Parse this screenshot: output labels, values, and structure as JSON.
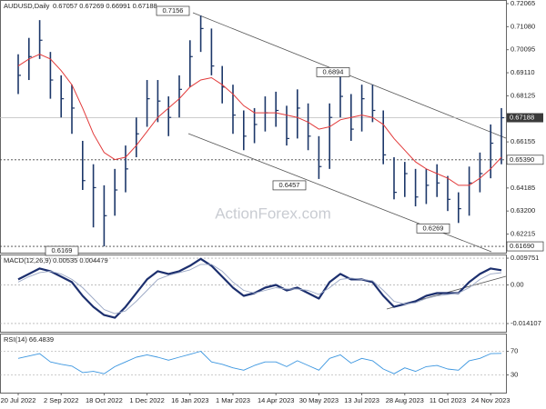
{
  "chart_data": [
    {
      "type": "ohlc",
      "title": "AUDUSD,Daily",
      "subtitle": "0.67057 0.67269 0.66991 0.67188",
      "watermark": "ActionForex.com",
      "color": "#1c3769",
      "categories": [
        "20 Jul 2022",
        null,
        null,
        null,
        "2 Sep 2022",
        null,
        null,
        null,
        "18 Oct 2022",
        null,
        null,
        null,
        "1 Dec 2022",
        null,
        null,
        null,
        "16 Jan 2023",
        null,
        null,
        null,
        "1 Mar 2023",
        null,
        null,
        null,
        "14 Apr 2023",
        null,
        null,
        null,
        "30 May 2023",
        null,
        null,
        null,
        "13 Jul 2023",
        null,
        null,
        null,
        "28 Aug 2023",
        null,
        null,
        null,
        "11 Oct 2023",
        null,
        null,
        null,
        "24 Nov 2023",
        null
      ],
      "high": [
        0.699,
        0.706,
        0.7136,
        0.7,
        0.69,
        0.686,
        0.662,
        0.652,
        0.643,
        0.65,
        0.66,
        0.672,
        0.688,
        0.688,
        0.681,
        0.69,
        0.705,
        0.7156,
        0.71,
        0.694,
        0.686,
        0.675,
        0.676,
        0.681,
        0.683,
        0.677,
        0.684,
        0.678,
        0.664,
        0.678,
        0.6894,
        0.682,
        0.686,
        0.686,
        0.675,
        0.655,
        0.653,
        0.65,
        0.65,
        0.652,
        0.647,
        0.64,
        0.651,
        0.657,
        0.669,
        0.676
      ],
      "low": [
        0.682,
        0.688,
        0.697,
        0.68,
        0.672,
        0.665,
        0.641,
        0.625,
        0.6169,
        0.63,
        0.64,
        0.655,
        0.668,
        0.67,
        0.664,
        0.672,
        0.685,
        0.7,
        0.69,
        0.678,
        0.665,
        0.658,
        0.661,
        0.666,
        0.668,
        0.66,
        0.663,
        0.658,
        0.6457,
        0.65,
        0.672,
        0.662,
        0.666,
        0.67,
        0.652,
        0.637,
        0.638,
        0.634,
        0.635,
        0.638,
        0.632,
        0.6269,
        0.63,
        0.64,
        0.646,
        0.652
      ],
      "close": [
        0.69,
        0.698,
        0.705,
        0.688,
        0.68,
        0.676,
        0.645,
        0.642,
        0.63,
        0.641,
        0.65,
        0.665,
        0.68,
        0.679,
        0.672,
        0.684,
        0.698,
        0.71,
        0.694,
        0.685,
        0.673,
        0.664,
        0.669,
        0.674,
        0.675,
        0.663,
        0.676,
        0.664,
        0.651,
        0.672,
        0.681,
        0.667,
        0.68,
        0.675,
        0.656,
        0.64,
        0.648,
        0.638,
        0.643,
        0.644,
        0.637,
        0.633,
        0.644,
        0.648,
        0.661,
        0.67188
      ],
      "moving_average": {
        "color": "#e23a3a",
        "values": [
          0.694,
          0.697,
          0.699,
          0.697,
          0.692,
          0.686,
          0.676,
          0.665,
          0.657,
          0.654,
          0.655,
          0.66,
          0.666,
          0.672,
          0.676,
          0.68,
          0.685,
          0.688,
          0.689,
          0.686,
          0.682,
          0.677,
          0.674,
          0.674,
          0.674,
          0.673,
          0.672,
          0.67,
          0.667,
          0.668,
          0.671,
          0.672,
          0.673,
          0.672,
          0.669,
          0.663,
          0.658,
          0.653,
          0.65,
          0.648,
          0.646,
          0.643,
          0.643,
          0.646,
          0.65,
          0.655
        ]
      },
      "ylim": [
        0.6142,
        0.7222
      ],
      "yticks": [
        {
          "value": 0.72065,
          "label": "0.72065"
        },
        {
          "value": 0.7108,
          "label": "0.71080"
        },
        {
          "value": 0.70095,
          "label": "0.70095"
        },
        {
          "value": 0.6911,
          "label": "0.69110"
        },
        {
          "value": 0.68125,
          "label": "0.68125"
        },
        {
          "value": 0.66155,
          "label": "0.66155"
        },
        {
          "value": 0.64185,
          "label": "0.64185"
        },
        {
          "value": 0.632,
          "label": "0.63200"
        },
        {
          "value": 0.62215,
          "label": "0.62215"
        }
      ],
      "last_price": {
        "value": 0.67188,
        "label": "0.67188"
      },
      "levels": [
        {
          "value": 0.6539,
          "label": "0.65390"
        },
        {
          "value": 0.6169,
          "label": "0.61690"
        }
      ],
      "annotations": [
        {
          "value": 0.7156,
          "label": "0.7156"
        },
        {
          "value": 0.6894,
          "label": "0.6894"
        },
        {
          "value": 0.6457,
          "label": "0.6457"
        },
        {
          "value": 0.6269,
          "label": "0.6269"
        },
        {
          "value": 0.6169,
          "label": "0.6169"
        }
      ]
    },
    {
      "type": "line",
      "title": "MACD(12,26,9) 0.00535 0.004479",
      "ylim": [
        -0.0171,
        0.0111
      ],
      "yticks": [
        0.009751,
        {
          "value": 0,
          "label": "0.00"
        },
        -0.014107
      ],
      "series": [
        {
          "color": "#1c2f6e",
          "values": [
            0.002,
            0.004,
            0.006,
            0.005,
            0.003,
            0.001,
            -0.004,
            -0.008,
            -0.011,
            -0.012,
            -0.008,
            -0.003,
            0.002,
            0.005,
            0.004,
            0.005,
            0.007,
            0.0095,
            0.007,
            0.003,
            -0.001,
            -0.004,
            -0.003,
            -0.001,
            0.0,
            -0.002,
            -0.001,
            -0.003,
            -0.005,
            0.001,
            0.004,
            0.002,
            0.002,
            0.001,
            -0.004,
            -0.008,
            -0.007,
            -0.006,
            -0.004,
            -0.003,
            -0.003,
            -0.003,
            0.001,
            0.004,
            0.006,
            0.00535
          ]
        },
        {
          "color": "#9aa7c4",
          "values": [
            0.001,
            0.003,
            0.0045,
            0.005,
            0.004,
            0.002,
            -0.001,
            -0.005,
            -0.009,
            -0.0105,
            -0.0095,
            -0.006,
            -0.002,
            0.002,
            0.0035,
            0.0045,
            0.0055,
            0.0075,
            0.0075,
            0.005,
            0.001,
            -0.002,
            -0.003,
            -0.002,
            -0.001,
            -0.0015,
            -0.0015,
            -0.002,
            -0.0035,
            -0.001,
            0.002,
            0.0025,
            0.002,
            0.0015,
            -0.002,
            -0.006,
            -0.007,
            -0.0065,
            -0.005,
            -0.004,
            -0.0035,
            -0.003,
            -0.001,
            0.002,
            0.004,
            0.004479
          ]
        }
      ]
    },
    {
      "type": "line",
      "title": "RSI(14) 66.4839",
      "ylim": [
        0,
        100
      ],
      "yticks": [
        30,
        70
      ],
      "series": [
        {
          "color": "#3b96e0",
          "values": [
            58,
            62,
            66,
            52,
            48,
            45,
            34,
            36,
            32,
            44,
            52,
            60,
            64,
            60,
            55,
            60,
            65,
            70,
            52,
            48,
            42,
            38,
            46,
            52,
            52,
            44,
            54,
            46,
            38,
            58,
            64,
            50,
            58,
            54,
            40,
            32,
            42,
            36,
            44,
            46,
            40,
            38,
            54,
            58,
            66,
            66.4839
          ]
        }
      ]
    }
  ]
}
